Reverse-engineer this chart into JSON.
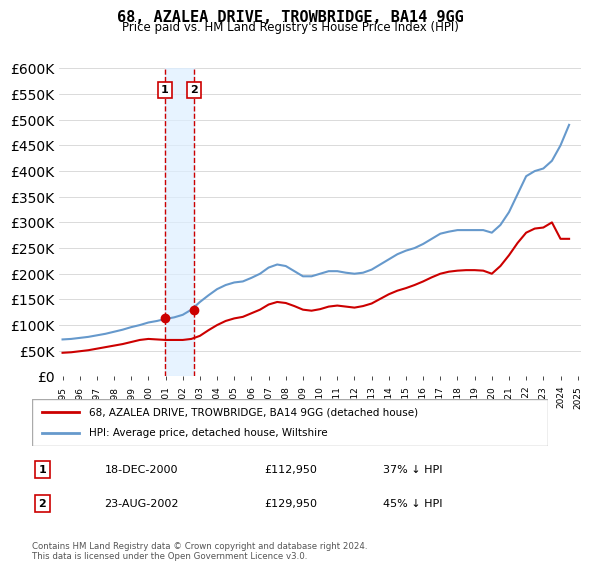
{
  "title": "68, AZALEA DRIVE, TROWBRIDGE, BA14 9GG",
  "subtitle": "Price paid vs. HM Land Registry's House Price Index (HPI)",
  "hpi_label": "HPI: Average price, detached house, Wiltshire",
  "property_label": "68, AZALEA DRIVE, TROWBRIDGE, BA14 9GG (detached house)",
  "footer": "Contains HM Land Registry data © Crown copyright and database right 2024.\nThis data is licensed under the Open Government Licence v3.0.",
  "sale1_date": "18-DEC-2000",
  "sale1_price": 112950,
  "sale1_hpi": "37% ↓ HPI",
  "sale2_date": "23-AUG-2002",
  "sale2_price": 129950,
  "sale2_hpi": "45% ↓ HPI",
  "hpi_color": "#6699cc",
  "property_color": "#cc0000",
  "sale_marker_color": "#cc0000",
  "vline_color": "#cc0000",
  "vshade_color": "#ddeeff",
  "ylim_min": 0,
  "ylim_max": 600000,
  "yticks": [
    0,
    50000,
    100000,
    150000,
    200000,
    250000,
    300000,
    350000,
    400000,
    450000,
    500000,
    550000,
    600000
  ],
  "hpi_x": [
    1995.0,
    1995.5,
    1996.0,
    1996.5,
    1997.0,
    1997.5,
    1998.0,
    1998.5,
    1999.0,
    1999.5,
    2000.0,
    2000.5,
    2001.0,
    2001.5,
    2002.0,
    2002.5,
    2003.0,
    2003.5,
    2004.0,
    2004.5,
    2005.0,
    2005.5,
    2006.0,
    2006.5,
    2007.0,
    2007.5,
    2008.0,
    2008.5,
    2009.0,
    2009.5,
    2010.0,
    2010.5,
    2011.0,
    2011.5,
    2012.0,
    2012.5,
    2013.0,
    2013.5,
    2014.0,
    2014.5,
    2015.0,
    2015.5,
    2016.0,
    2016.5,
    2017.0,
    2017.5,
    2018.0,
    2018.5,
    2019.0,
    2019.5,
    2020.0,
    2020.5,
    2021.0,
    2021.5,
    2022.0,
    2022.5,
    2023.0,
    2023.5,
    2024.0,
    2024.5
  ],
  "hpi_y": [
    72000,
    73000,
    75000,
    77000,
    80000,
    83000,
    87000,
    91000,
    96000,
    100000,
    105000,
    108000,
    112000,
    115000,
    120000,
    130000,
    145000,
    158000,
    170000,
    178000,
    183000,
    185000,
    192000,
    200000,
    212000,
    218000,
    215000,
    205000,
    195000,
    195000,
    200000,
    205000,
    205000,
    202000,
    200000,
    202000,
    208000,
    218000,
    228000,
    238000,
    245000,
    250000,
    258000,
    268000,
    278000,
    282000,
    285000,
    285000,
    285000,
    285000,
    280000,
    295000,
    320000,
    355000,
    390000,
    400000,
    405000,
    420000,
    450000,
    490000
  ],
  "prop_x": [
    1995.0,
    1995.5,
    1996.0,
    1996.5,
    1997.0,
    1997.5,
    1998.0,
    1998.5,
    1999.0,
    1999.5,
    2000.0,
    2000.5,
    2001.0,
    2001.5,
    2002.0,
    2002.5,
    2003.0,
    2003.5,
    2004.0,
    2004.5,
    2005.0,
    2005.5,
    2006.0,
    2006.5,
    2007.0,
    2007.5,
    2008.0,
    2008.5,
    2009.0,
    2009.5,
    2010.0,
    2010.5,
    2011.0,
    2011.5,
    2012.0,
    2012.5,
    2013.0,
    2013.5,
    2014.0,
    2014.5,
    2015.0,
    2015.5,
    2016.0,
    2016.5,
    2017.0,
    2017.5,
    2018.0,
    2018.5,
    2019.0,
    2019.5,
    2020.0,
    2020.5,
    2021.0,
    2021.5,
    2022.0,
    2022.5,
    2023.0,
    2023.5,
    2024.0,
    2024.5
  ],
  "prop_y": [
    46000,
    47000,
    49000,
    51000,
    54000,
    57000,
    60000,
    63000,
    67000,
    71000,
    73000,
    72000,
    71000,
    71000,
    71000,
    73000,
    79000,
    90000,
    100000,
    108000,
    113000,
    116000,
    123000,
    130000,
    140000,
    145000,
    143000,
    137000,
    130000,
    128000,
    131000,
    136000,
    138000,
    136000,
    134000,
    137000,
    142000,
    151000,
    160000,
    167000,
    172000,
    178000,
    185000,
    193000,
    200000,
    204000,
    206000,
    207000,
    207000,
    206000,
    200000,
    215000,
    236000,
    260000,
    280000,
    288000,
    290000,
    300000,
    268000,
    268000
  ],
  "sale1_x": 2000.96,
  "sale1_y": 112950,
  "sale2_x": 2002.65,
  "sale2_y": 129950,
  "vshade_x1": 2000.96,
  "vshade_x2": 2002.65,
  "xmin": 1994.8,
  "xmax": 2025.2
}
